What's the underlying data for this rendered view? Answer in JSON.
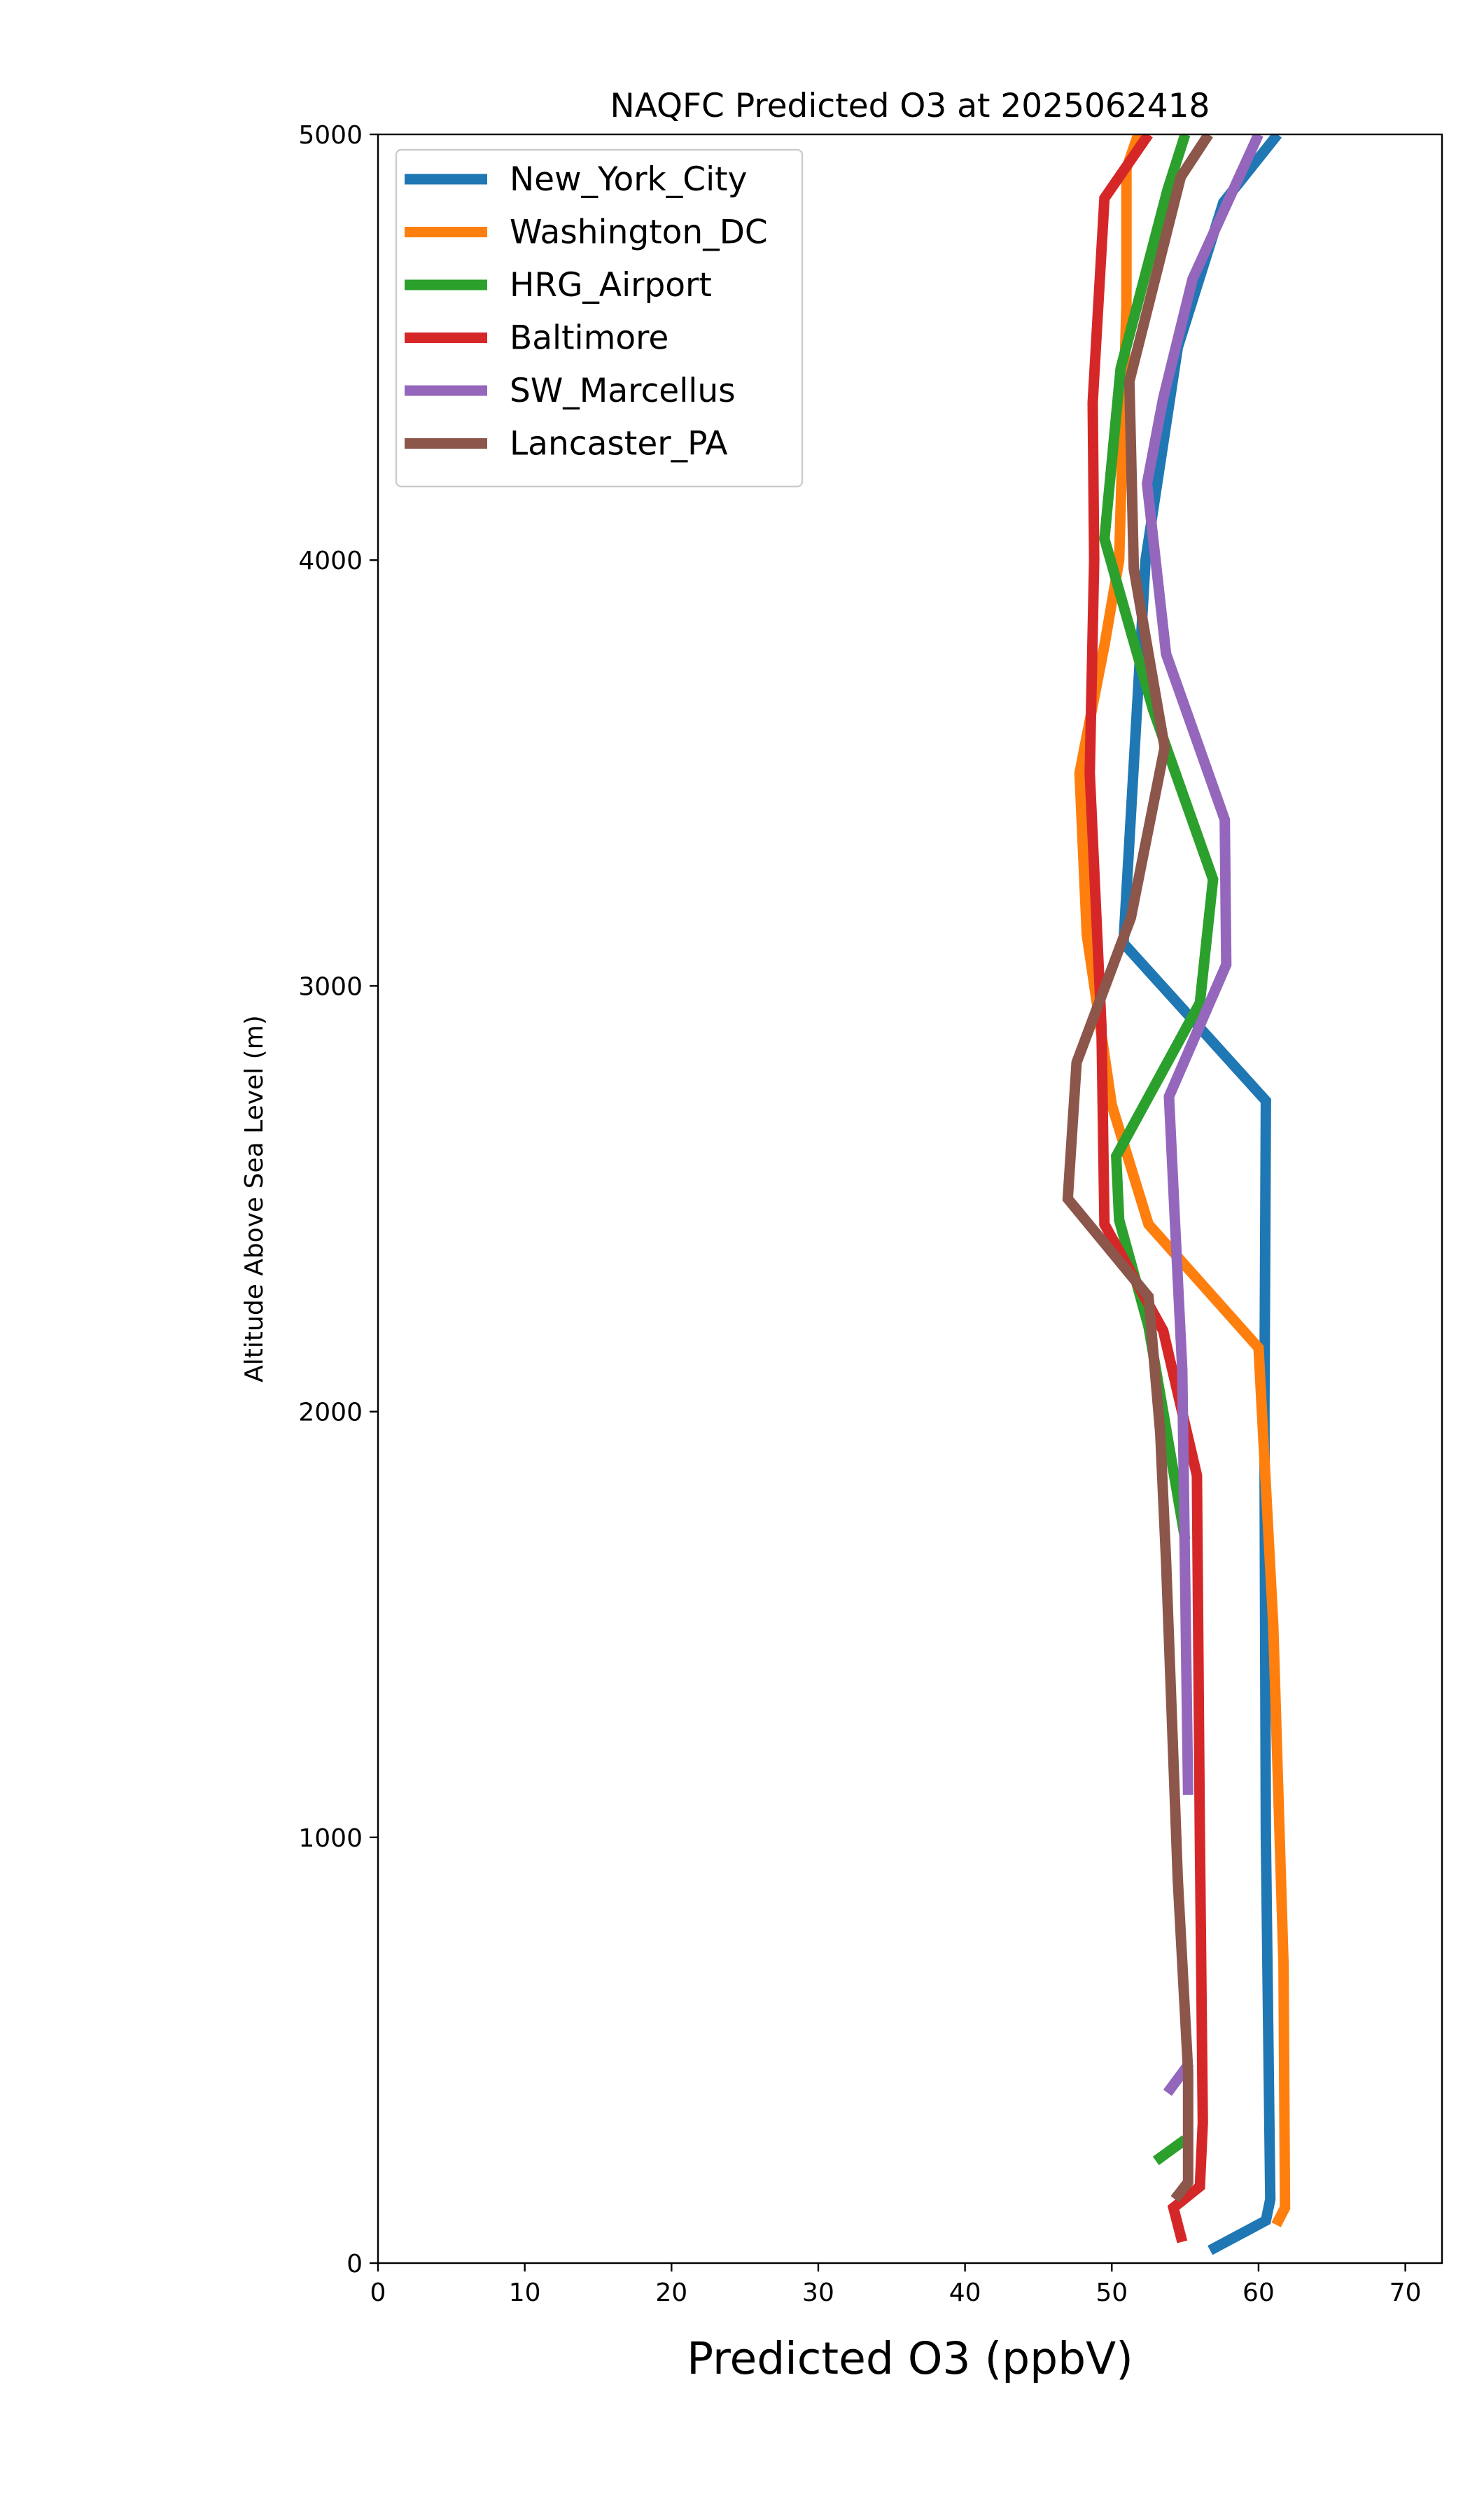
{
  "chart_data": {
    "type": "line",
    "title": "NAQFC Predicted O3 at 2025062418",
    "xlabel": "Predicted O3 (ppbV)",
    "ylabel": "Altitude Above Sea Level (m)",
    "xlim": [
      0,
      72.5
    ],
    "ylim": [
      0,
      5000
    ],
    "xticks": [
      "0",
      "10",
      "20",
      "30",
      "40",
      "50",
      "60",
      "70"
    ],
    "yticks": [
      "0",
      "1000",
      "2000",
      "3000",
      "4000",
      "5000"
    ],
    "legend_position": "upper-left",
    "series": [
      {
        "name": "New_York_City",
        "color": "#1f77b4",
        "points": [
          [
            56.7,
            30
          ],
          [
            60.5,
            100
          ],
          [
            60.8,
            150
          ],
          [
            60.5,
            1000
          ],
          [
            60.4,
            2000
          ],
          [
            60.5,
            2730
          ],
          [
            50.8,
            3100
          ],
          [
            52.3,
            4000
          ],
          [
            54.5,
            4500
          ],
          [
            57.6,
            4840
          ],
          [
            61.3,
            5000
          ]
        ]
      },
      {
        "name": "Washington_DC",
        "color": "#ff7f0e",
        "points": [
          [
            61.2,
            90
          ],
          [
            61.8,
            130
          ],
          [
            61.7,
            700
          ],
          [
            61.0,
            1500
          ],
          [
            60.0,
            2150
          ],
          [
            52.5,
            2440
          ],
          [
            50.0,
            2720
          ],
          [
            48.3,
            3120
          ],
          [
            47.8,
            3500
          ],
          [
            49.5,
            3800
          ],
          [
            50.5,
            4000
          ],
          [
            51.0,
            4600
          ],
          [
            51.0,
            4920
          ],
          [
            51.8,
            5000
          ]
        ]
      },
      {
        "name": "HRG_Airport",
        "color": "#2ca02c",
        "points": [
          [
            53.0,
            240
          ],
          [
            55.0,
            290
          ]
        ]
      },
      {
        "name": "HRG_Airport",
        "color": "#2ca02c",
        "points": [
          [
            55.0,
            1700
          ],
          [
            52.5,
            2200
          ],
          [
            50.5,
            2450
          ],
          [
            50.3,
            2600
          ],
          [
            56.0,
            2960
          ],
          [
            56.9,
            3250
          ],
          [
            52.8,
            3650
          ],
          [
            49.5,
            4050
          ],
          [
            50.6,
            4450
          ],
          [
            53.8,
            4870
          ],
          [
            55.0,
            5000
          ]
        ]
      },
      {
        "name": "Baltimore",
        "color": "#d62728",
        "points": [
          [
            54.8,
            50
          ],
          [
            54.2,
            130
          ],
          [
            56.0,
            180
          ],
          [
            56.2,
            330
          ],
          [
            56.0,
            1000
          ],
          [
            55.8,
            1850
          ],
          [
            53.5,
            2190
          ],
          [
            49.5,
            2440
          ],
          [
            49.3,
            2900
          ],
          [
            48.5,
            3500
          ],
          [
            48.8,
            4000
          ],
          [
            48.7,
            4370
          ],
          [
            49.5,
            4850
          ],
          [
            52.5,
            5000
          ]
        ]
      },
      {
        "name": "SW_Marcellus",
        "color": "#9467bd",
        "points": [
          [
            53.8,
            400
          ],
          [
            55.3,
            470
          ]
        ]
      },
      {
        "name": "SW_Marcellus",
        "color": "#9467bd",
        "points": [
          [
            55.2,
            1100
          ],
          [
            54.8,
            2100
          ],
          [
            54.3,
            2450
          ],
          [
            53.9,
            2740
          ],
          [
            57.8,
            3050
          ],
          [
            57.7,
            3390
          ],
          [
            53.7,
            3780
          ],
          [
            52.4,
            4180
          ],
          [
            53.5,
            4380
          ],
          [
            55.5,
            4660
          ],
          [
            60.0,
            5000
          ]
        ]
      },
      {
        "name": "Lancaster_PA",
        "color": "#8c564b",
        "points": [
          [
            54.3,
            150
          ],
          [
            55.2,
            190
          ],
          [
            55.2,
            450
          ],
          [
            54.5,
            900
          ],
          [
            53.7,
            1650
          ],
          [
            53.3,
            1950
          ],
          [
            52.5,
            2270
          ],
          [
            47.0,
            2500
          ],
          [
            47.6,
            2820
          ],
          [
            51.3,
            3160
          ],
          [
            53.6,
            3560
          ],
          [
            51.5,
            3980
          ],
          [
            51.2,
            4420
          ],
          [
            54.7,
            4900
          ],
          [
            56.6,
            5000
          ]
        ]
      }
    ]
  }
}
